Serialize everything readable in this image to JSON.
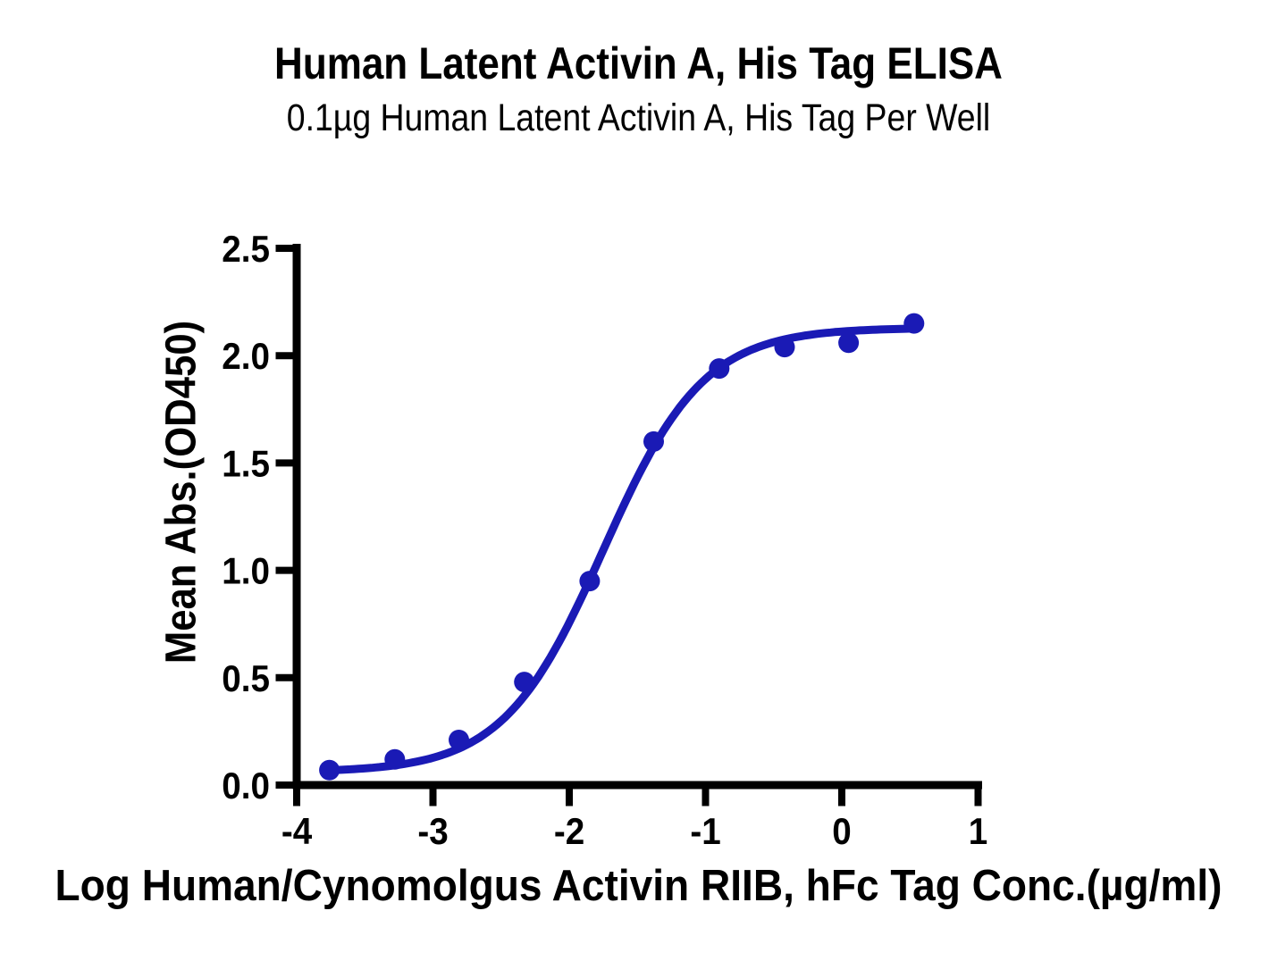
{
  "chart_data": {
    "type": "scatter",
    "title": "Human Latent Activin A, His Tag ELISA",
    "subtitle": "0.1µg Human Latent Activin A, His Tag Per Well",
    "xlabel": "Log Human/Cynomolgus Activin RIIB, hFc Tag Conc.(µg/ml)",
    "ylabel": "Mean Abs.(OD450)",
    "x": [
      -3.76,
      -3.28,
      -2.81,
      -2.33,
      -1.85,
      -1.38,
      -0.9,
      -0.42,
      0.05,
      0.53
    ],
    "y": [
      0.07,
      0.12,
      0.21,
      0.48,
      0.95,
      1.6,
      1.94,
      2.04,
      2.06,
      2.15
    ],
    "xlim": [
      -4,
      1
    ],
    "ylim": [
      0,
      2.5
    ],
    "x_ticks": [
      -4,
      -3,
      -2,
      -1,
      0,
      1
    ],
    "x_tick_labels": [
      "-4",
      "-3",
      "-2",
      "-1",
      "0",
      "1"
    ],
    "y_ticks": [
      0,
      0.5,
      1,
      1.5,
      2,
      2.5
    ],
    "y_tick_labels": [
      "0.0",
      "0.5",
      "1.0",
      "1.5",
      "2.0",
      "2.5"
    ],
    "grid": false,
    "legend": null,
    "curve_fit": {
      "model": "4PL",
      "bottom": 0.06,
      "top": 2.13,
      "log_ec50": -1.75,
      "hill": 1.18,
      "x_range": [
        -3.76,
        0.53
      ]
    },
    "colors": {
      "curve": "#1A1AB5",
      "marker": "#1A1AB5",
      "axis": "#000000",
      "text": "#000000"
    }
  }
}
